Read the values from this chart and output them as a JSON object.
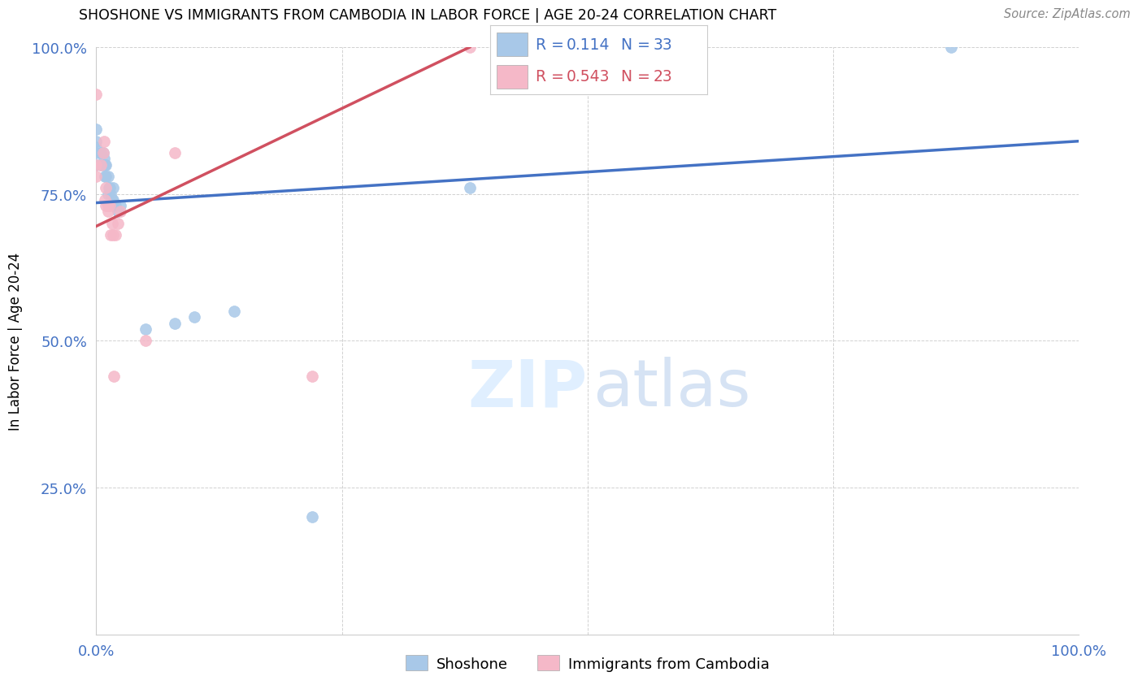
{
  "title": "SHOSHONE VS IMMIGRANTS FROM CAMBODIA IN LABOR FORCE | AGE 20-24 CORRELATION CHART",
  "source": "Source: ZipAtlas.com",
  "ylabel": "In Labor Force | Age 20-24",
  "xlim": [
    0.0,
    1.0
  ],
  "ylim": [
    0.0,
    1.0
  ],
  "xtick_positions": [
    0.0,
    0.25,
    0.5,
    0.75,
    1.0
  ],
  "ytick_positions": [
    0.0,
    0.25,
    0.5,
    0.75,
    1.0
  ],
  "xticklabels": [
    "0.0%",
    "",
    "",
    "",
    "100.0%"
  ],
  "yticklabels": [
    "",
    "25.0%",
    "50.0%",
    "75.0%",
    "100.0%"
  ],
  "shoshone_R": 0.114,
  "shoshone_N": 33,
  "cambodia_R": 0.543,
  "cambodia_N": 23,
  "shoshone_color": "#a8c8e8",
  "cambodia_color": "#f5b8c8",
  "shoshone_line_color": "#4472c4",
  "cambodia_line_color": "#d05060",
  "legend_label_1": "Shoshone",
  "legend_label_2": "Immigrants from Cambodia",
  "shoshone_x": [
    0.0,
    0.0,
    0.0,
    0.0,
    0.0,
    0.005,
    0.005,
    0.007,
    0.008,
    0.008,
    0.009,
    0.009,
    0.01,
    0.01,
    0.012,
    0.012,
    0.013,
    0.014,
    0.015,
    0.016,
    0.017,
    0.017,
    0.018,
    0.02,
    0.022,
    0.025,
    0.05,
    0.08,
    0.1,
    0.14,
    0.22,
    0.38,
    0.87
  ],
  "shoshone_y": [
    0.8,
    0.82,
    0.83,
    0.84,
    0.86,
    0.8,
    0.82,
    0.82,
    0.8,
    0.81,
    0.78,
    0.8,
    0.78,
    0.8,
    0.75,
    0.78,
    0.76,
    0.76,
    0.75,
    0.74,
    0.74,
    0.76,
    0.73,
    0.73,
    0.72,
    0.73,
    0.52,
    0.53,
    0.54,
    0.55,
    0.2,
    0.76,
    1.0
  ],
  "cambodia_x": [
    0.0,
    0.0,
    0.0,
    0.005,
    0.007,
    0.008,
    0.009,
    0.01,
    0.01,
    0.012,
    0.012,
    0.014,
    0.015,
    0.016,
    0.017,
    0.018,
    0.02,
    0.022,
    0.025,
    0.05,
    0.08,
    0.22,
    0.38
  ],
  "cambodia_y": [
    0.78,
    0.8,
    0.92,
    0.8,
    0.82,
    0.84,
    0.74,
    0.73,
    0.76,
    0.72,
    0.73,
    0.73,
    0.68,
    0.7,
    0.68,
    0.44,
    0.68,
    0.7,
    0.72,
    0.5,
    0.82,
    0.44,
    1.0
  ],
  "blue_line_x0": 0.0,
  "blue_line_y0": 0.735,
  "blue_line_x1": 1.0,
  "blue_line_y1": 0.84,
  "pink_line_x0": 0.0,
  "pink_line_y0": 0.695,
  "pink_line_x1": 0.38,
  "pink_line_y1": 1.0
}
